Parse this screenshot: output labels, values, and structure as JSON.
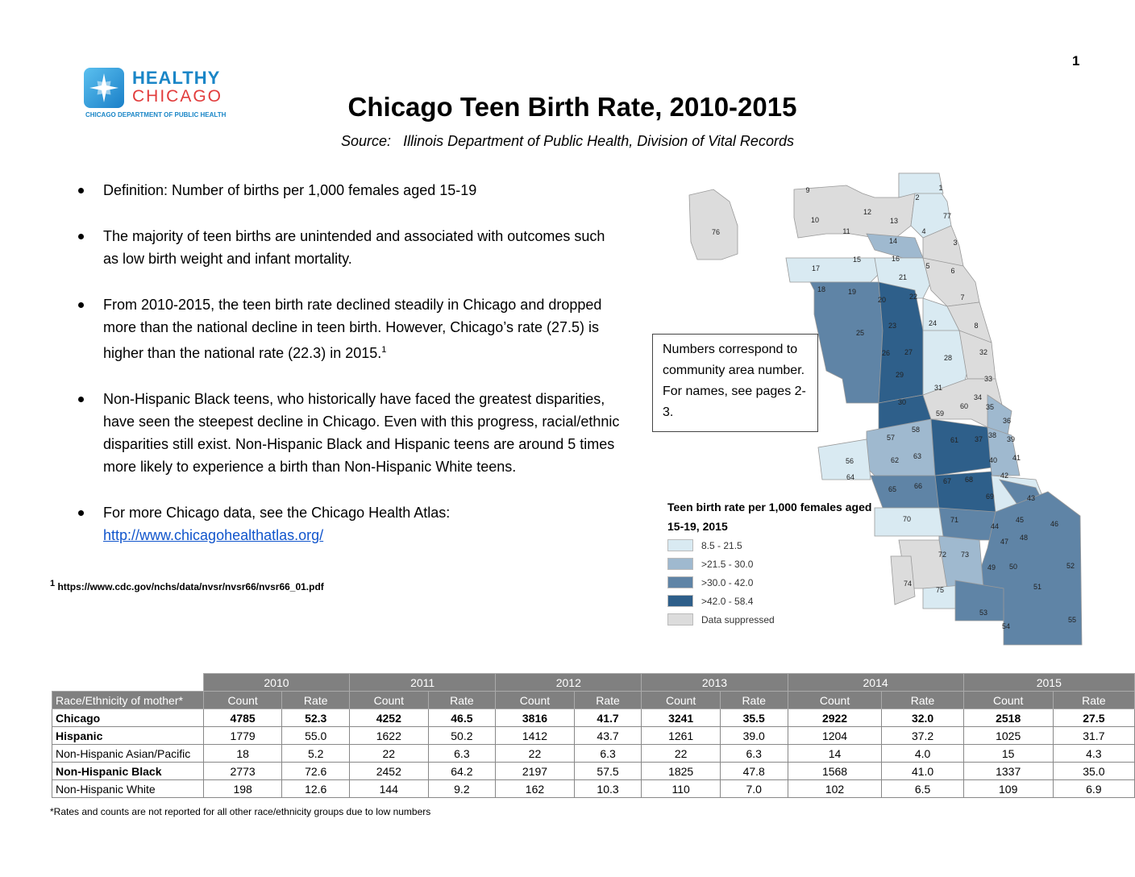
{
  "page_number": "1",
  "logo": {
    "line1": "HEALTHY",
    "line2": "CHICAGO",
    "line3": "CHICAGO DEPARTMENT OF PUBLIC HEALTH"
  },
  "title": "Chicago Teen Birth Rate, 2010-2015",
  "source": {
    "label": "Source:",
    "text": "Illinois Department of Public Health, Division of Vital Records"
  },
  "bullets": {
    "b1": "Definition: Number of births per 1,000 females aged 15-19",
    "b2": "The majority of teen births are unintended and associated with outcomes such as low birth weight and infant mortality.",
    "b3": "From 2010-2015, the teen birth rate declined steadily in Chicago and dropped more than the national decline in teen birth. However, Chicago’s rate (27.5) is higher than the national rate (22.3) in 2015.",
    "b3_sup": "1",
    "b4": "Non-Hispanic Black teens, who historically have faced the greatest disparities, have seen the steepest decline in Chicago. Even with this progress, racial/ethnic disparities still exist. Non-Hispanic Black and Hispanic teens are around 5 times more likely to experience a birth than Non-Hispanic White teens.",
    "b5": "For more Chicago data, see the Chicago Health Atlas:",
    "b5_link": "http://www.chicagohealthatlas.org/"
  },
  "footnote1": {
    "sup": "1",
    "text": "https://www.cdc.gov/nchs/data/nvsr/nvsr66/nvsr66_01.pdf"
  },
  "map_note": "Numbers correspond to community area number. For names, see pages 2-3.",
  "legend": {
    "title": "Teen birth rate per 1,000 females aged 15-19, 2015",
    "items": [
      {
        "label": "8.5 - 21.5",
        "color": "#d9eaf2"
      },
      {
        "label": ">21.5 - 30.0",
        "color": "#9fb9cf"
      },
      {
        "label": ">30.0 - 42.0",
        "color": "#5f84a6"
      },
      {
        "label": ">42.0 - 58.4",
        "color": "#2e5f8a"
      },
      {
        "label": "Data suppressed",
        "color": "#dcdcdc"
      }
    ]
  },
  "map_labels": [
    "1",
    "2",
    "3",
    "4",
    "5",
    "6",
    "7",
    "8",
    "9",
    "10",
    "11",
    "12",
    "13",
    "14",
    "15",
    "16",
    "17",
    "18",
    "19",
    "20",
    "21",
    "22",
    "23",
    "24",
    "25",
    "26",
    "27",
    "28",
    "29",
    "30",
    "31",
    "32",
    "33",
    "34",
    "35",
    "36",
    "37",
    "38",
    "39",
    "40",
    "41",
    "42",
    "43",
    "44",
    "45",
    "46",
    "47",
    "48",
    "49",
    "50",
    "51",
    "52",
    "53",
    "54",
    "55",
    "56",
    "57",
    "58",
    "59",
    "60",
    "61",
    "62",
    "63",
    "64",
    "65",
    "66",
    "67",
    "68",
    "69",
    "70",
    "71",
    "72",
    "73",
    "74",
    "75",
    "76",
    "77"
  ],
  "table": {
    "years": [
      "2010",
      "2011",
      "2012",
      "2013",
      "2014",
      "2015"
    ],
    "row_header": "Race/Ethnicity of mother*",
    "col_count": "Count",
    "col_rate": "Rate",
    "rows": [
      {
        "name": "Chicago",
        "values": [
          "4785",
          "52.3",
          "4252",
          "46.5",
          "3816",
          "41.7",
          "3241",
          "35.5",
          "2922",
          "32.0",
          "2518",
          "27.5"
        ]
      },
      {
        "name": "Hispanic",
        "values": [
          "1779",
          "55.0",
          "1622",
          "50.2",
          "1412",
          "43.7",
          "1261",
          "39.0",
          "1204",
          "37.2",
          "1025",
          "31.7"
        ]
      },
      {
        "name": "Non-Hispanic Asian/Pacific",
        "values": [
          "18",
          "5.2",
          "22",
          "6.3",
          "22",
          "6.3",
          "22",
          "6.3",
          "14",
          "4.0",
          "15",
          "4.3"
        ]
      },
      {
        "name": "Non-Hispanic Black",
        "values": [
          "2773",
          "72.6",
          "2452",
          "64.2",
          "2197",
          "57.5",
          "1825",
          "47.8",
          "1568",
          "41.0",
          "1337",
          "35.0"
        ]
      },
      {
        "name": "Non-Hispanic White",
        "values": [
          "198",
          "12.6",
          "144",
          "9.2",
          "162",
          "10.3",
          "110",
          "7.0",
          "102",
          "6.5",
          "109",
          "6.9"
        ]
      }
    ]
  },
  "footnote2": "*Rates and counts are not reported for all other race/ethnicity groups due to low numbers"
}
